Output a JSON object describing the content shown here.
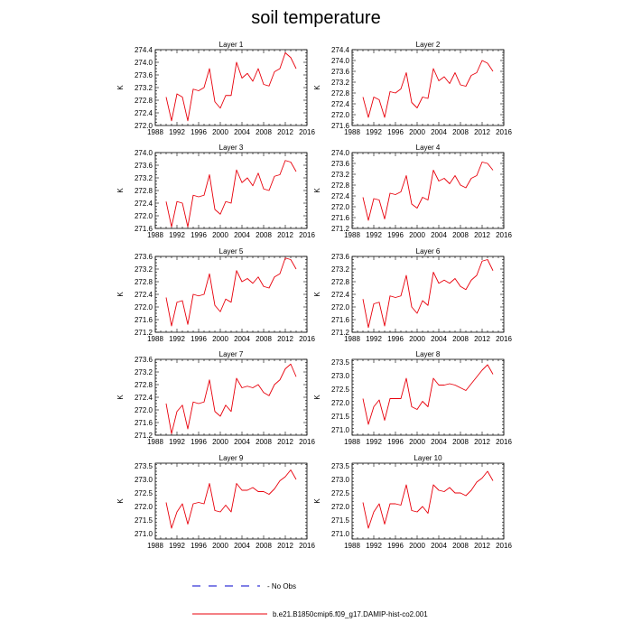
{
  "figure": {
    "title": "soil temperature"
  },
  "legend": {
    "entries": [
      {
        "label": "- No Obs",
        "color": "#0000cc",
        "style": "dashed"
      },
      {
        "label": "b.e21.B1850cmip6.f09_g17.DAMIP-hist-co2.001",
        "color": "#e8000b",
        "style": "solid"
      }
    ]
  },
  "colors": {
    "series": "#e8000b",
    "obs": "#0000cc",
    "axis": "#000000"
  },
  "chart_data": [
    {
      "type": "line",
      "title": "Layer 1",
      "ylabel": "K",
      "xlim": [
        1988,
        2016
      ],
      "ylim": [
        272.0,
        274.4
      ],
      "xticks": [
        1988,
        1992,
        1996,
        2000,
        2004,
        2008,
        2012,
        2016
      ],
      "yticks": [
        "272.0",
        "272.4",
        "272.8",
        "273.2",
        "273.6",
        "274.0",
        "274.4"
      ],
      "x": [
        1990,
        1991,
        1992,
        1993,
        1994,
        1995,
        1996,
        1997,
        1998,
        1999,
        2000,
        2001,
        2002,
        2003,
        2004,
        2005,
        2006,
        2007,
        2008,
        2009,
        2010,
        2011,
        2012,
        2013,
        2014
      ],
      "series": [
        {
          "name": "b.e21.B1850cmip6.f09_g17.DAMIP-hist-co2.001",
          "values": [
            272.9,
            272.15,
            273.0,
            272.9,
            272.15,
            273.15,
            273.1,
            273.2,
            273.8,
            272.75,
            272.55,
            272.95,
            272.95,
            274.0,
            273.5,
            273.65,
            273.4,
            273.8,
            273.3,
            273.25,
            273.7,
            273.8,
            274.3,
            274.15,
            273.8
          ]
        }
      ]
    },
    {
      "type": "line",
      "title": "Layer 2",
      "ylabel": "K",
      "xlim": [
        1988,
        2016
      ],
      "ylim": [
        271.6,
        274.4
      ],
      "xticks": [
        1988,
        1992,
        1996,
        2000,
        2004,
        2008,
        2012,
        2016
      ],
      "yticks": [
        "271.6",
        "272.0",
        "272.4",
        "272.8",
        "273.2",
        "273.6",
        "274.0",
        "274.4"
      ],
      "x": [
        1990,
        1991,
        1992,
        1993,
        1994,
        1995,
        1996,
        1997,
        1998,
        1999,
        2000,
        2001,
        2002,
        2003,
        2004,
        2005,
        2006,
        2007,
        2008,
        2009,
        2010,
        2011,
        2012,
        2013,
        2014
      ],
      "series": [
        {
          "name": "b.e21.B1850cmip6.f09_g17.DAMIP-hist-co2.001",
          "values": [
            272.65,
            271.9,
            272.65,
            272.55,
            271.9,
            272.85,
            272.8,
            272.95,
            273.55,
            272.45,
            272.25,
            272.65,
            272.6,
            273.7,
            273.25,
            273.4,
            273.15,
            273.55,
            273.1,
            273.05,
            273.45,
            273.55,
            274.0,
            273.9,
            273.6
          ]
        }
      ]
    },
    {
      "type": "line",
      "title": "Layer 3",
      "ylabel": "K",
      "xlim": [
        1988,
        2016
      ],
      "ylim": [
        271.6,
        274.0
      ],
      "xticks": [
        1988,
        1992,
        1996,
        2000,
        2004,
        2008,
        2012,
        2016
      ],
      "yticks": [
        "271.6",
        "272.0",
        "272.4",
        "272.8",
        "273.2",
        "273.6",
        "274.0"
      ],
      "x": [
        1990,
        1991,
        1992,
        1993,
        1994,
        1995,
        1996,
        1997,
        1998,
        1999,
        2000,
        2001,
        2002,
        2003,
        2004,
        2005,
        2006,
        2007,
        2008,
        2009,
        2010,
        2011,
        2012,
        2013,
        2014
      ],
      "series": [
        {
          "name": "b.e21.B1850cmip6.f09_g17.DAMIP-hist-co2.001",
          "values": [
            272.45,
            271.65,
            272.45,
            272.4,
            271.65,
            272.65,
            272.6,
            272.65,
            273.3,
            272.2,
            272.05,
            272.45,
            272.4,
            273.45,
            273.05,
            273.2,
            272.95,
            273.35,
            272.85,
            272.8,
            273.25,
            273.3,
            273.75,
            273.7,
            273.4
          ]
        }
      ]
    },
    {
      "type": "line",
      "title": "Layer 4",
      "ylabel": "K",
      "xlim": [
        1988,
        2016
      ],
      "ylim": [
        271.2,
        274.0
      ],
      "xticks": [
        1988,
        1992,
        1996,
        2000,
        2004,
        2008,
        2012,
        2016
      ],
      "yticks": [
        "271.2",
        "271.6",
        "272.0",
        "272.4",
        "272.8",
        "273.2",
        "273.6",
        "274.0"
      ],
      "x": [
        1990,
        1991,
        1992,
        1993,
        1994,
        1995,
        1996,
        1997,
        1998,
        1999,
        2000,
        2001,
        2002,
        2003,
        2004,
        2005,
        2006,
        2007,
        2008,
        2009,
        2010,
        2011,
        2012,
        2013,
        2014
      ],
      "series": [
        {
          "name": "b.e21.B1850cmip6.f09_g17.DAMIP-hist-co2.001",
          "values": [
            272.35,
            271.5,
            272.3,
            272.25,
            271.55,
            272.5,
            272.45,
            272.55,
            273.15,
            272.1,
            271.95,
            272.35,
            272.25,
            273.35,
            272.95,
            273.05,
            272.85,
            273.15,
            272.8,
            272.7,
            273.05,
            273.15,
            273.65,
            273.6,
            273.35
          ]
        }
      ]
    },
    {
      "type": "line",
      "title": "Layer 5",
      "ylabel": "K",
      "xlim": [
        1988,
        2016
      ],
      "ylim": [
        271.2,
        273.6
      ],
      "xticks": [
        1988,
        1992,
        1996,
        2000,
        2004,
        2008,
        2012,
        2016
      ],
      "yticks": [
        "271.2",
        "271.6",
        "272.0",
        "272.4",
        "272.8",
        "273.2",
        "273.6"
      ],
      "x": [
        1990,
        1991,
        1992,
        1993,
        1994,
        1995,
        1996,
        1997,
        1998,
        1999,
        2000,
        2001,
        2002,
        2003,
        2004,
        2005,
        2006,
        2007,
        2008,
        2009,
        2010,
        2011,
        2012,
        2013,
        2014
      ],
      "series": [
        {
          "name": "b.e21.B1850cmip6.f09_g17.DAMIP-hist-co2.001",
          "values": [
            272.3,
            271.4,
            272.15,
            272.2,
            271.45,
            272.4,
            272.35,
            272.4,
            273.05,
            272.05,
            271.85,
            272.25,
            272.15,
            273.15,
            272.8,
            272.9,
            272.75,
            272.95,
            272.65,
            272.6,
            272.95,
            273.05,
            273.55,
            273.5,
            273.2
          ]
        }
      ]
    },
    {
      "type": "line",
      "title": "Layer 6",
      "ylabel": "K",
      "xlim": [
        1988,
        2016
      ],
      "ylim": [
        271.2,
        273.6
      ],
      "xticks": [
        1988,
        1992,
        1996,
        2000,
        2004,
        2008,
        2012,
        2016
      ],
      "yticks": [
        "271.2",
        "271.6",
        "272.0",
        "272.4",
        "272.8",
        "273.2",
        "273.6"
      ],
      "x": [
        1990,
        1991,
        1992,
        1993,
        1994,
        1995,
        1996,
        1997,
        1998,
        1999,
        2000,
        2001,
        2002,
        2003,
        2004,
        2005,
        2006,
        2007,
        2008,
        2009,
        2010,
        2011,
        2012,
        2013,
        2014
      ],
      "series": [
        {
          "name": "b.e21.B1850cmip6.f09_g17.DAMIP-hist-co2.001",
          "values": [
            272.25,
            271.35,
            272.1,
            272.15,
            271.4,
            272.35,
            272.3,
            272.35,
            273.0,
            272.0,
            271.8,
            272.2,
            272.05,
            273.1,
            272.75,
            272.85,
            272.75,
            272.9,
            272.65,
            272.55,
            272.85,
            273.0,
            273.45,
            273.5,
            273.15
          ]
        }
      ]
    },
    {
      "type": "line",
      "title": "Layer 7",
      "ylabel": "K",
      "xlim": [
        1988,
        2016
      ],
      "ylim": [
        271.2,
        273.6
      ],
      "xticks": [
        1988,
        1992,
        1996,
        2000,
        2004,
        2008,
        2012,
        2016
      ],
      "yticks": [
        "271.2",
        "271.6",
        "272.0",
        "272.4",
        "272.8",
        "273.2",
        "273.6"
      ],
      "x": [
        1990,
        1991,
        1992,
        1993,
        1994,
        1995,
        1996,
        1997,
        1998,
        1999,
        2000,
        2001,
        2002,
        2003,
        2004,
        2005,
        2006,
        2007,
        2008,
        2009,
        2010,
        2011,
        2012,
        2013,
        2014
      ],
      "series": [
        {
          "name": "b.e21.B1850cmip6.f09_g17.DAMIP-hist-co2.001",
          "values": [
            272.2,
            271.25,
            271.95,
            272.15,
            271.4,
            272.25,
            272.2,
            272.25,
            272.95,
            271.95,
            271.8,
            272.15,
            271.95,
            273.0,
            272.7,
            272.75,
            272.7,
            272.8,
            272.55,
            272.45,
            272.8,
            272.95,
            273.3,
            273.45,
            273.05
          ]
        }
      ]
    },
    {
      "type": "line",
      "title": "Layer 8",
      "ylabel": "K",
      "xlim": [
        1988,
        2016
      ],
      "ylim": [
        270.8,
        273.6
      ],
      "xticks": [
        1988,
        1992,
        1996,
        2000,
        2004,
        2008,
        2012,
        2016
      ],
      "yticks": [
        "271.0",
        "271.5",
        "272.0",
        "272.5",
        "273.0",
        "273.5"
      ],
      "x": [
        1990,
        1991,
        1992,
        1993,
        1994,
        1995,
        1996,
        1997,
        1998,
        1999,
        2000,
        2001,
        2002,
        2003,
        2004,
        2005,
        2006,
        2007,
        2008,
        2009,
        2010,
        2011,
        2012,
        2013,
        2014
      ],
      "series": [
        {
          "name": "b.e21.B1850cmip6.f09_g17.DAMIP-hist-co2.001",
          "values": [
            272.15,
            271.2,
            271.85,
            272.1,
            271.35,
            272.15,
            272.15,
            272.15,
            272.9,
            271.85,
            271.75,
            272.05,
            271.85,
            272.9,
            272.65,
            272.65,
            272.7,
            272.65,
            272.55,
            272.45,
            272.7,
            272.95,
            273.2,
            273.4,
            273.05
          ]
        }
      ]
    },
    {
      "type": "line",
      "title": "Layer 9",
      "ylabel": "K",
      "xlim": [
        1988,
        2016
      ],
      "ylim": [
        270.8,
        273.6
      ],
      "xticks": [
        1988,
        1992,
        1996,
        2000,
        2004,
        2008,
        2012,
        2016
      ],
      "yticks": [
        "271.0",
        "271.5",
        "272.0",
        "272.5",
        "273.0",
        "273.5"
      ],
      "x": [
        1990,
        1991,
        1992,
        1993,
        1994,
        1995,
        1996,
        1997,
        1998,
        1999,
        2000,
        2001,
        2002,
        2003,
        2004,
        2005,
        2006,
        2007,
        2008,
        2009,
        2010,
        2011,
        2012,
        2013,
        2014
      ],
      "series": [
        {
          "name": "b.e21.B1850cmip6.f09_g17.DAMIP-hist-co2.001",
          "values": [
            272.15,
            271.2,
            271.8,
            272.1,
            271.35,
            272.1,
            272.15,
            272.1,
            272.85,
            271.85,
            271.8,
            272.05,
            271.8,
            272.85,
            272.6,
            272.6,
            272.7,
            272.55,
            272.55,
            272.45,
            272.65,
            272.95,
            273.1,
            273.35,
            273.0
          ]
        }
      ]
    },
    {
      "type": "line",
      "title": "Layer 10",
      "ylabel": "K",
      "xlim": [
        1988,
        2016
      ],
      "ylim": [
        270.8,
        273.6
      ],
      "xticks": [
        1988,
        1992,
        1996,
        2000,
        2004,
        2008,
        2012,
        2016
      ],
      "yticks": [
        "271.0",
        "271.5",
        "272.0",
        "272.5",
        "273.0",
        "273.5"
      ],
      "x": [
        1990,
        1991,
        1992,
        1993,
        1994,
        1995,
        1996,
        1997,
        1998,
        1999,
        2000,
        2001,
        2002,
        2003,
        2004,
        2005,
        2006,
        2007,
        2008,
        2009,
        2010,
        2011,
        2012,
        2013,
        2014
      ],
      "series": [
        {
          "name": "b.e21.B1850cmip6.f09_g17.DAMIP-hist-co2.001",
          "values": [
            272.15,
            271.2,
            271.8,
            272.1,
            271.35,
            272.1,
            272.1,
            272.05,
            272.8,
            271.85,
            271.8,
            272.0,
            271.75,
            272.8,
            272.6,
            272.55,
            272.7,
            272.5,
            272.5,
            272.4,
            272.6,
            272.9,
            273.05,
            273.3,
            272.95
          ]
        }
      ]
    }
  ]
}
